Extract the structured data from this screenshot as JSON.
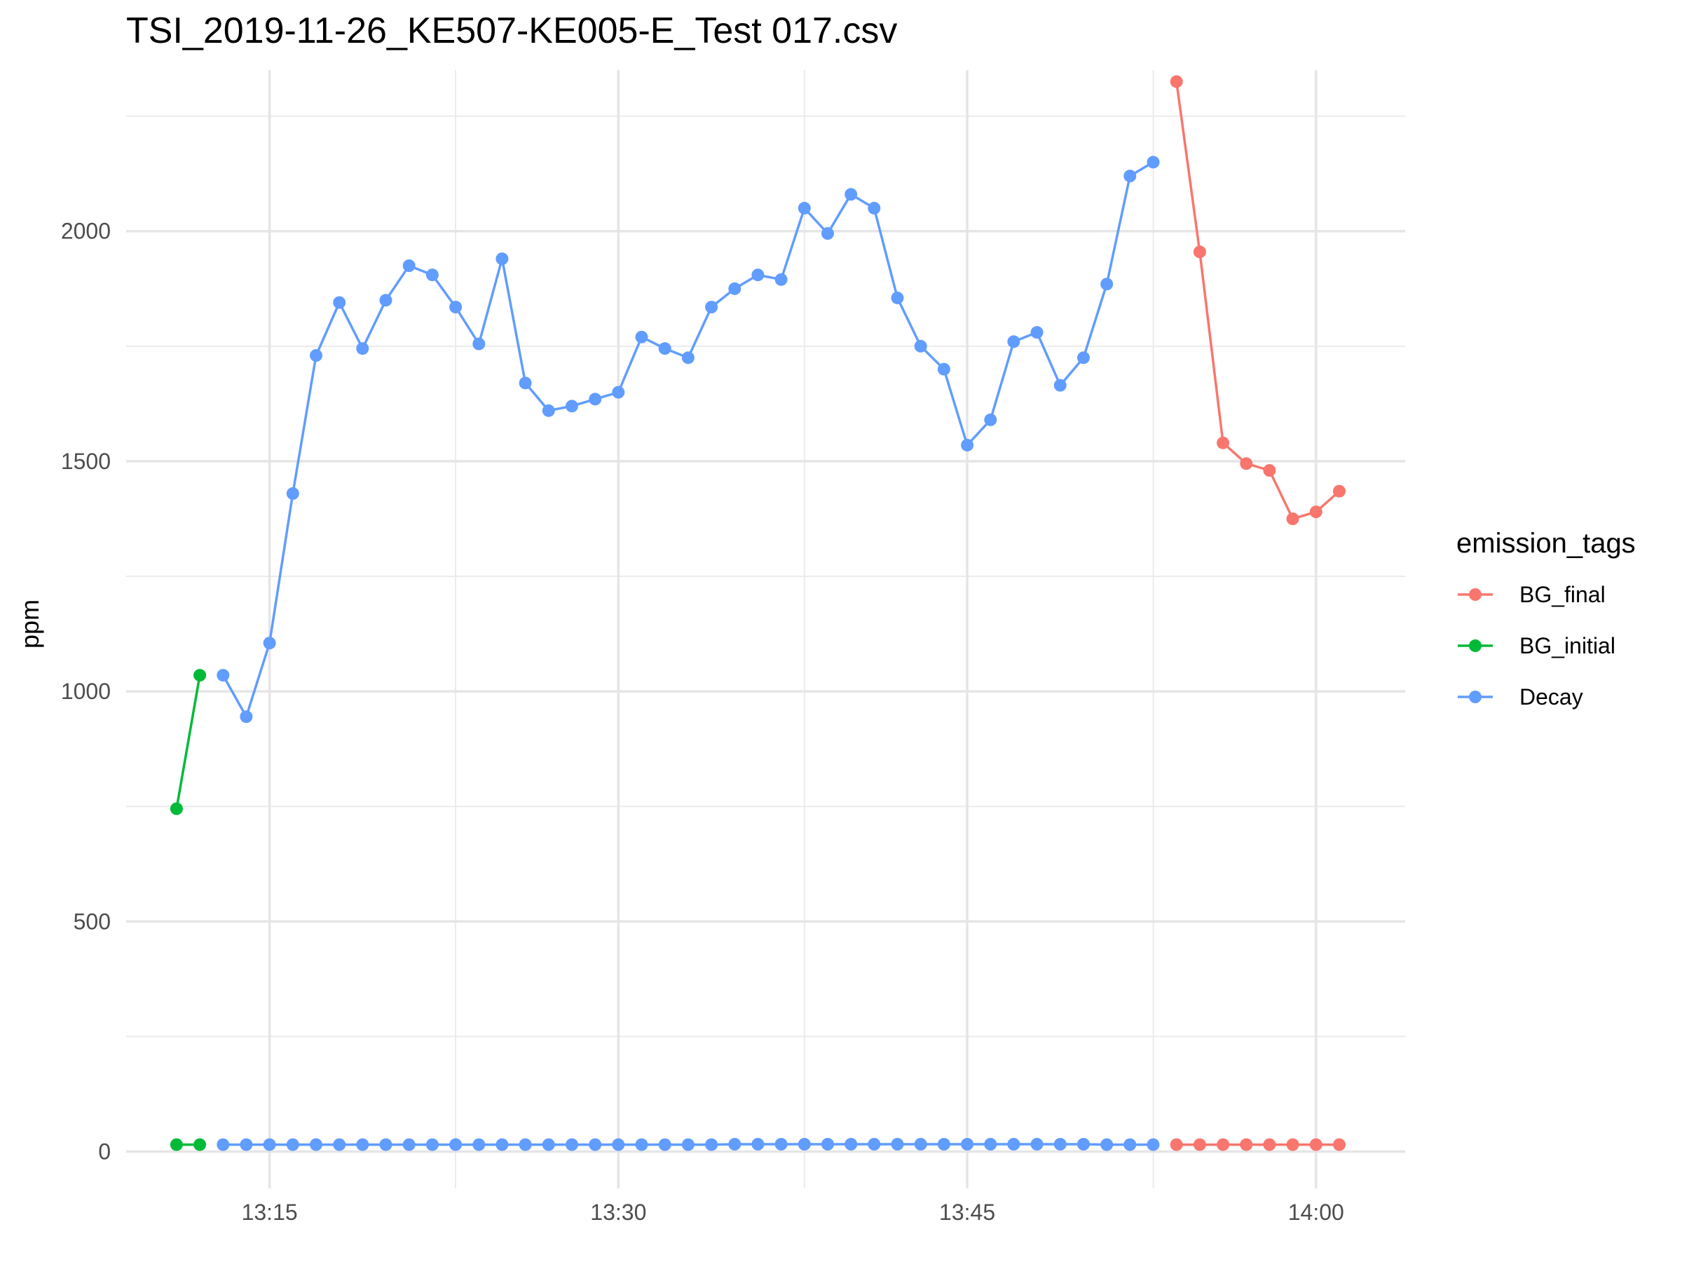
{
  "title": "TSI_2019-11-26_KE507-KE005-E_Test 017.csv",
  "chart_data": {
    "type": "line",
    "title": "TSI_2019-11-26_KE507-KE005-E_Test 017.csv",
    "xlabel": "",
    "ylabel": "ppm",
    "xlim": [
      "13:08:50",
      "14:03:50"
    ],
    "ylim": [
      -80,
      2350
    ],
    "grid": true,
    "x_ticks": [
      "13:15",
      "13:30",
      "13:45",
      "14:00"
    ],
    "y_ticks": [
      0,
      500,
      1000,
      1500,
      2000
    ],
    "legend": {
      "title": "emission_tags",
      "position": "right"
    },
    "colors": {
      "BG_final": "#F8766D",
      "BG_initial": "#00BA38",
      "Decay": "#619CFF"
    },
    "series": [
      {
        "name": "BG_initial",
        "color": "#00BA38",
        "lines": [
          [
            [
              "13:11",
              745
            ],
            [
              "13:12",
              1035
            ]
          ],
          [
            [
              "13:11",
              15
            ],
            [
              "13:12",
              15
            ]
          ]
        ]
      },
      {
        "name": "Decay",
        "color": "#619CFF",
        "lines": [
          [
            [
              "13:13",
              1035
            ],
            [
              "13:14",
              945
            ],
            [
              "13:15",
              1105
            ],
            [
              "13:16",
              1430
            ],
            [
              "13:17",
              1730
            ],
            [
              "13:18",
              1845
            ],
            [
              "13:19",
              1745
            ],
            [
              "13:20",
              1850
            ],
            [
              "13:21",
              1925
            ],
            [
              "13:22",
              1905
            ],
            [
              "13:23",
              1835
            ],
            [
              "13:24",
              1755
            ],
            [
              "13:25",
              1940
            ],
            [
              "13:26",
              1670
            ],
            [
              "13:27",
              1610
            ],
            [
              "13:28",
              1620
            ],
            [
              "13:29",
              1635
            ],
            [
              "13:30",
              1650
            ],
            [
              "13:31",
              1770
            ],
            [
              "13:32",
              1745
            ],
            [
              "13:33",
              1725
            ],
            [
              "13:34",
              1835
            ],
            [
              "13:35",
              1875
            ],
            [
              "13:36",
              1905
            ],
            [
              "13:37",
              1895
            ],
            [
              "13:38",
              2050
            ],
            [
              "13:39",
              1995
            ],
            [
              "13:40",
              2080
            ],
            [
              "13:41",
              2050
            ],
            [
              "13:42",
              1855
            ],
            [
              "13:43",
              1750
            ],
            [
              "13:44",
              1700
            ],
            [
              "13:45",
              1535
            ],
            [
              "13:46",
              1590
            ],
            [
              "13:47",
              1760
            ],
            [
              "13:48",
              1780
            ],
            [
              "13:49",
              1665
            ],
            [
              "13:50",
              1725
            ],
            [
              "13:51",
              1885
            ],
            [
              "13:52",
              2120
            ],
            [
              "13:53",
              2150
            ]
          ],
          [
            [
              "13:13",
              15
            ],
            [
              "13:14",
              15
            ],
            [
              "13:15",
              15
            ],
            [
              "13:16",
              15
            ],
            [
              "13:17",
              15
            ],
            [
              "13:18",
              15
            ],
            [
              "13:19",
              15
            ],
            [
              "13:20",
              15
            ],
            [
              "13:21",
              15
            ],
            [
              "13:22",
              15
            ],
            [
              "13:23",
              15
            ],
            [
              "13:24",
              15
            ],
            [
              "13:25",
              15
            ],
            [
              "13:26",
              15
            ],
            [
              "13:27",
              15
            ],
            [
              "13:28",
              15
            ],
            [
              "13:29",
              15
            ],
            [
              "13:30",
              15
            ],
            [
              "13:31",
              15
            ],
            [
              "13:32",
              15
            ],
            [
              "13:33",
              15
            ],
            [
              "13:34",
              15
            ],
            [
              "13:35",
              16
            ],
            [
              "13:36",
              16
            ],
            [
              "13:37",
              16
            ],
            [
              "13:38",
              16
            ],
            [
              "13:39",
              16
            ],
            [
              "13:40",
              16
            ],
            [
              "13:41",
              16
            ],
            [
              "13:42",
              16
            ],
            [
              "13:43",
              16
            ],
            [
              "13:44",
              16
            ],
            [
              "13:45",
              16
            ],
            [
              "13:46",
              16
            ],
            [
              "13:47",
              16
            ],
            [
              "13:48",
              16
            ],
            [
              "13:49",
              16
            ],
            [
              "13:50",
              16
            ],
            [
              "13:51",
              15
            ],
            [
              "13:52",
              15
            ],
            [
              "13:53",
              15
            ]
          ]
        ]
      },
      {
        "name": "BG_final",
        "color": "#F8766D",
        "lines": [
          [
            [
              "13:54",
              2325
            ],
            [
              "13:55",
              1955
            ],
            [
              "13:56",
              1540
            ],
            [
              "13:57",
              1495
            ],
            [
              "13:58",
              1480
            ],
            [
              "13:59",
              1375
            ],
            [
              "14:00",
              1390
            ],
            [
              "14:01",
              1435
            ]
          ],
          [
            [
              "13:54",
              15
            ],
            [
              "13:55",
              15
            ],
            [
              "13:56",
              15
            ],
            [
              "13:57",
              15
            ],
            [
              "13:58",
              15
            ],
            [
              "13:59",
              15
            ],
            [
              "14:00",
              15
            ],
            [
              "14:01",
              15
            ]
          ]
        ]
      }
    ]
  }
}
